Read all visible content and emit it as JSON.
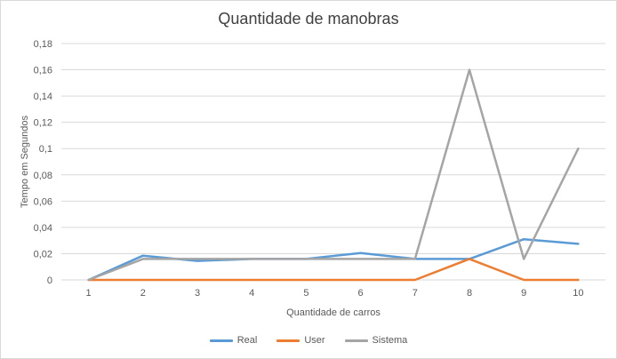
{
  "chart_data": {
    "type": "line",
    "title": "Quantidade de manobras",
    "xlabel": "Quantidade de carros",
    "ylabel": "Tempo em Segundos",
    "categories": [
      "1",
      "2",
      "3",
      "4",
      "5",
      "6",
      "7",
      "8",
      "9",
      "10"
    ],
    "ylim": [
      0,
      0.18
    ],
    "yticks": [
      "0",
      "0,02",
      "0,04",
      "0,06",
      "0,08",
      "0,1",
      "0,12",
      "0,14",
      "0,16",
      "0,18"
    ],
    "ytick_values": [
      0,
      0.02,
      0.04,
      0.06,
      0.08,
      0.1,
      0.12,
      0.14,
      0.16,
      0.18
    ],
    "grid": true,
    "legend_position": "bottom",
    "series": [
      {
        "name": "Real",
        "color": "#5b9bd5",
        "values": [
          0,
          0.0185,
          0.0145,
          0.016,
          0.016,
          0.0205,
          0.016,
          0.016,
          0.031,
          0.0275
        ]
      },
      {
        "name": "User",
        "color": "#ed7d31",
        "values": [
          0,
          0,
          0,
          0,
          0,
          0,
          0,
          0.016,
          0,
          0
        ]
      },
      {
        "name": "Sistema",
        "color": "#a5a5a5",
        "values": [
          0,
          0.016,
          0.016,
          0.016,
          0.016,
          0.016,
          0.016,
          0.16,
          0.016,
          0.1
        ]
      }
    ]
  }
}
